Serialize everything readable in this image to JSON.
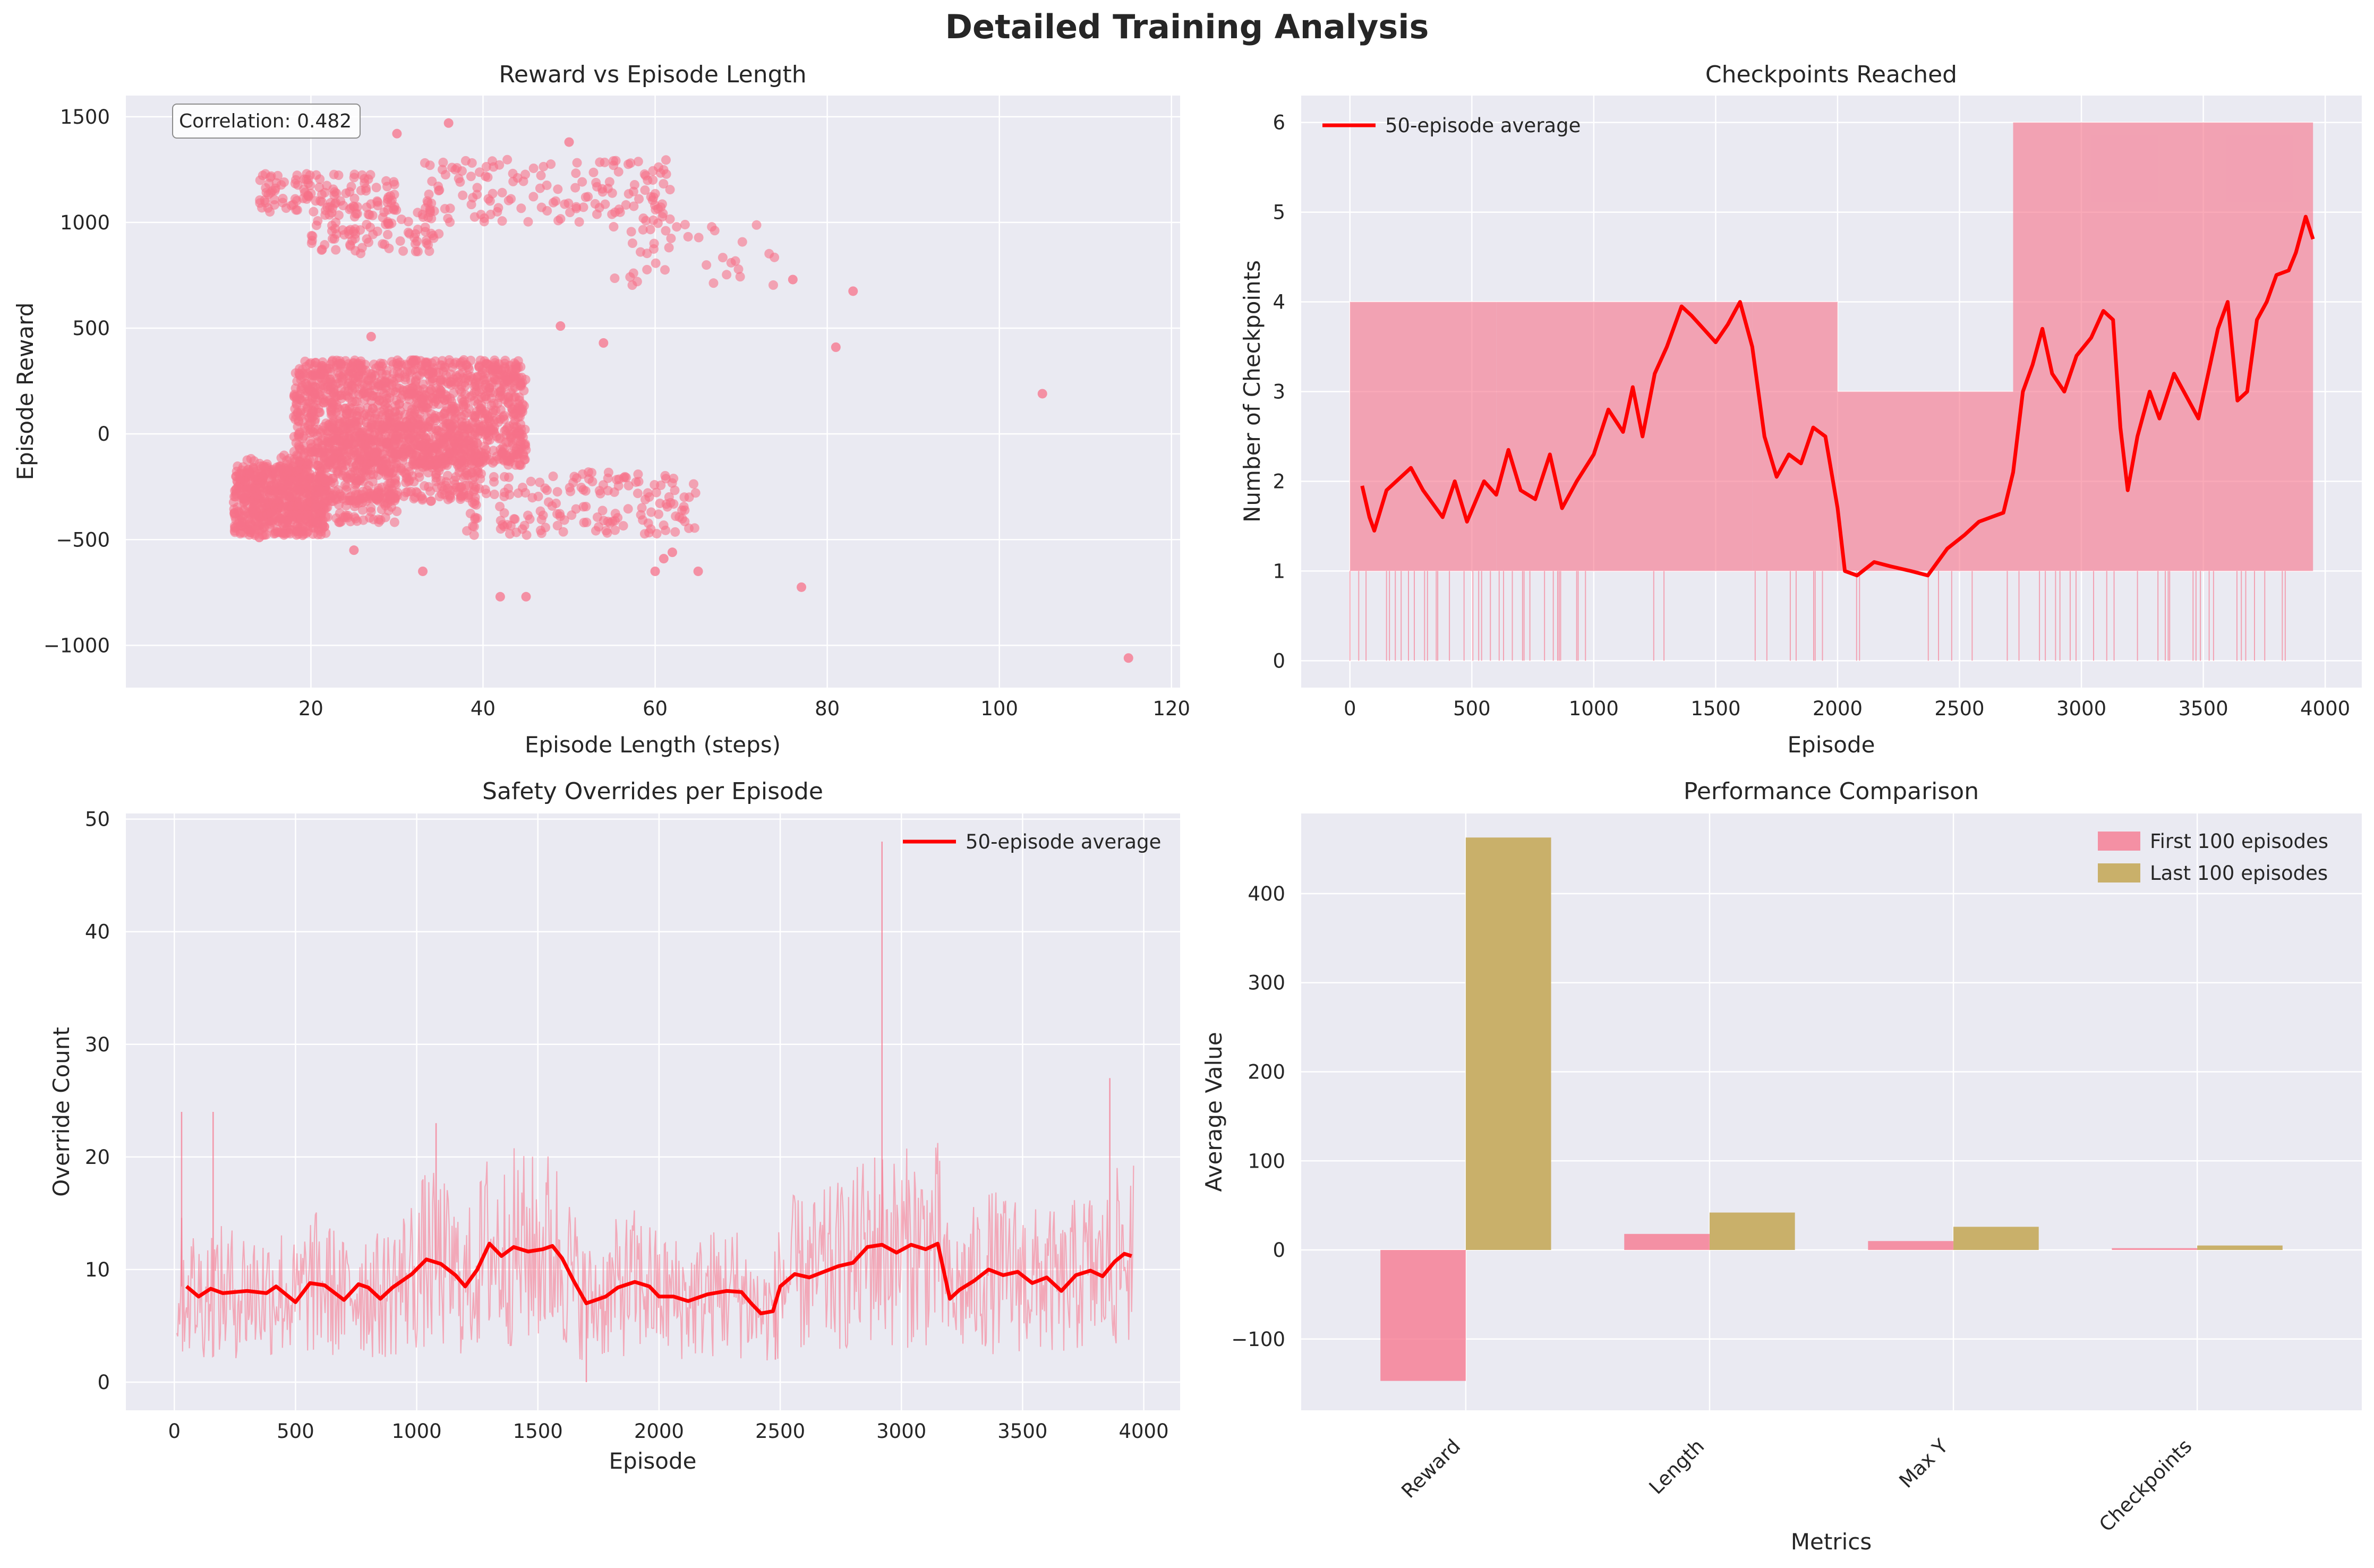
{
  "figure": {
    "suptitle": "Detailed Training Analysis"
  },
  "colors": {
    "panel_bg": "#eaeaf2",
    "grid": "#ffffff",
    "pink": "#f77189",
    "gold": "#c9b06a",
    "avg": "#ff0000",
    "text": "#262626"
  },
  "chart_data": [
    {
      "type": "scatter",
      "title": "Reward vs Episode Length",
      "xlabel": "Episode Length (steps)",
      "ylabel": "Episode Reward",
      "xlim": [
        -1.5,
        121
      ],
      "ylim": [
        -1200,
        1600
      ],
      "xticks": [
        20,
        40,
        60,
        80,
        100,
        120
      ],
      "yticks": [
        -1000,
        -500,
        0,
        500,
        1000,
        1500
      ],
      "annotation": "Correlation: 0.482",
      "grid": true,
      "clusters": [
        {
          "x": [
            11,
            22
          ],
          "y": [
            -480,
            -150
          ],
          "n": 520
        },
        {
          "x": [
            12,
            30
          ],
          "y": [
            -420,
            -100
          ],
          "n": 260
        },
        {
          "x": [
            18,
            45
          ],
          "y": [
            -150,
            350
          ],
          "n": 1300
        },
        {
          "x": [
            22,
            40
          ],
          "y": [
            -320,
            60
          ],
          "n": 420
        },
        {
          "x": [
            38,
            65
          ],
          "y": [
            -480,
            -180
          ],
          "n": 170
        },
        {
          "x": [
            14,
            30
          ],
          "y": [
            1050,
            1230
          ],
          "n": 120
        },
        {
          "x": [
            20,
            35
          ],
          "y": [
            850,
            1050
          ],
          "n": 90
        },
        {
          "x": [
            33,
            62
          ],
          "y": [
            1000,
            1300
          ],
          "n": 150
        },
        {
          "x": [
            55,
            75
          ],
          "y": [
            700,
            1000
          ],
          "n": 40
        }
      ],
      "outliers": [
        [
          115,
          -1060
        ],
        [
          105,
          190
        ],
        [
          77,
          -725
        ],
        [
          81,
          410
        ],
        [
          83,
          675
        ],
        [
          45,
          -770
        ],
        [
          42,
          -770
        ],
        [
          33,
          -650
        ],
        [
          60,
          -650
        ],
        [
          61,
          -590
        ],
        [
          49,
          510
        ],
        [
          54,
          430
        ],
        [
          27,
          460
        ],
        [
          36,
          1470
        ],
        [
          30,
          1420
        ],
        [
          50,
          1380
        ],
        [
          62,
          -560
        ],
        [
          76,
          730
        ],
        [
          65,
          -650
        ],
        [
          25,
          -550
        ],
        [
          14,
          -490
        ]
      ],
      "xtick_labels": [
        "20",
        "40",
        "60",
        "80",
        "100",
        "120"
      ],
      "ytick_labels": [
        "−1000",
        "−500",
        "0",
        "500",
        "1000",
        "1500"
      ]
    },
    {
      "type": "line",
      "title": "Checkpoints Reached",
      "xlabel": "Episode",
      "ylabel": "Number of Checkpoints",
      "xlim": [
        -200,
        4150
      ],
      "ylim": [
        -0.3,
        6.3
      ],
      "xticks": [
        0,
        500,
        1000,
        1500,
        2000,
        2500,
        3000,
        3500,
        4000
      ],
      "yticks": [
        0,
        1,
        2,
        3,
        4,
        5,
        6
      ],
      "legend": [
        "50-episode average"
      ],
      "legend_position": "top-left",
      "raw_level_bands": [
        {
          "x": [
            0,
            600
          ],
          "lo": 1,
          "hi": 4,
          "low_prob": 0.2
        },
        {
          "x": [
            600,
            1000
          ],
          "lo": 1,
          "hi": 4,
          "low_prob": 0.15
        },
        {
          "x": [
            1000,
            1650
          ],
          "lo": 1,
          "hi": 4,
          "low_prob": 0.03
        },
        {
          "x": [
            1650,
            2000
          ],
          "lo": 1,
          "hi": 4,
          "low_prob": 0.12
        },
        {
          "x": [
            2000,
            2720
          ],
          "lo": 1,
          "hi": 3,
          "low_prob": 0.04
        },
        {
          "x": [
            2720,
            3950
          ],
          "lo": 1,
          "hi": 6,
          "low_prob": 0.12
        }
      ],
      "avg_points": [
        [
          50,
          1.95
        ],
        [
          80,
          1.6
        ],
        [
          100,
          1.45
        ],
        [
          150,
          1.9
        ],
        [
          250,
          2.15
        ],
        [
          300,
          1.9
        ],
        [
          380,
          1.6
        ],
        [
          430,
          2.0
        ],
        [
          480,
          1.55
        ],
        [
          550,
          2.0
        ],
        [
          600,
          1.85
        ],
        [
          650,
          2.35
        ],
        [
          700,
          1.9
        ],
        [
          760,
          1.8
        ],
        [
          820,
          2.3
        ],
        [
          870,
          1.7
        ],
        [
          930,
          2.0
        ],
        [
          1000,
          2.3
        ],
        [
          1060,
          2.8
        ],
        [
          1120,
          2.55
        ],
        [
          1160,
          3.05
        ],
        [
          1200,
          2.5
        ],
        [
          1250,
          3.2
        ],
        [
          1300,
          3.5
        ],
        [
          1360,
          3.95
        ],
        [
          1400,
          3.85
        ],
        [
          1450,
          3.7
        ],
        [
          1500,
          3.55
        ],
        [
          1550,
          3.75
        ],
        [
          1600,
          4.0
        ],
        [
          1650,
          3.5
        ],
        [
          1700,
          2.5
        ],
        [
          1750,
          2.05
        ],
        [
          1800,
          2.3
        ],
        [
          1850,
          2.2
        ],
        [
          1900,
          2.6
        ],
        [
          1950,
          2.5
        ],
        [
          2000,
          1.7
        ],
        [
          2030,
          1.0
        ],
        [
          2080,
          0.95
        ],
        [
          2150,
          1.1
        ],
        [
          2220,
          1.05
        ],
        [
          2300,
          1.0
        ],
        [
          2370,
          0.95
        ],
        [
          2450,
          1.25
        ],
        [
          2520,
          1.4
        ],
        [
          2580,
          1.55
        ],
        [
          2630,
          1.6
        ],
        [
          2680,
          1.65
        ],
        [
          2720,
          2.1
        ],
        [
          2760,
          3.0
        ],
        [
          2800,
          3.3
        ],
        [
          2840,
          3.7
        ],
        [
          2880,
          3.2
        ],
        [
          2930,
          3.0
        ],
        [
          2980,
          3.4
        ],
        [
          3040,
          3.6
        ],
        [
          3090,
          3.9
        ],
        [
          3130,
          3.8
        ],
        [
          3160,
          2.6
        ],
        [
          3190,
          1.9
        ],
        [
          3230,
          2.5
        ],
        [
          3280,
          3.0
        ],
        [
          3320,
          2.7
        ],
        [
          3380,
          3.2
        ],
        [
          3430,
          2.95
        ],
        [
          3480,
          2.7
        ],
        [
          3520,
          3.2
        ],
        [
          3560,
          3.7
        ],
        [
          3600,
          4.0
        ],
        [
          3640,
          2.9
        ],
        [
          3680,
          3.0
        ],
        [
          3720,
          3.8
        ],
        [
          3760,
          4.0
        ],
        [
          3800,
          4.3
        ],
        [
          3850,
          4.35
        ],
        [
          3880,
          4.55
        ],
        [
          3920,
          4.95
        ],
        [
          3950,
          4.7
        ]
      ],
      "xtick_labels": [
        "0",
        "500",
        "1000",
        "1500",
        "2000",
        "2500",
        "3000",
        "3500",
        "4000"
      ],
      "ytick_labels": [
        "0",
        "1",
        "2",
        "3",
        "4",
        "5",
        "6"
      ]
    },
    {
      "type": "line",
      "title": "Safety Overrides per Episode",
      "xlabel": "Episode",
      "ylabel": "Override Count",
      "xlim": [
        -200,
        4150
      ],
      "ylim": [
        -2.5,
        50.5
      ],
      "xticks": [
        0,
        500,
        1000,
        1500,
        2000,
        2500,
        3000,
        3500,
        4000
      ],
      "yticks": [
        0,
        10,
        20,
        30,
        40,
        50
      ],
      "legend": [
        "50-episode average"
      ],
      "legend_position": "top-right",
      "spikes": [
        [
          2920,
          48
        ],
        [
          3860,
          27
        ],
        [
          1700,
          0
        ],
        [
          30,
          24
        ],
        [
          160,
          24
        ],
        [
          1080,
          23
        ],
        [
          2480,
          2
        ]
      ],
      "avg_points": [
        [
          50,
          8.5
        ],
        [
          100,
          7.6
        ],
        [
          150,
          8.3
        ],
        [
          200,
          7.9
        ],
        [
          300,
          8.1
        ],
        [
          380,
          7.9
        ],
        [
          420,
          8.5
        ],
        [
          500,
          7.1
        ],
        [
          560,
          8.8
        ],
        [
          620,
          8.6
        ],
        [
          700,
          7.3
        ],
        [
          760,
          8.7
        ],
        [
          800,
          8.4
        ],
        [
          850,
          7.4
        ],
        [
          900,
          8.4
        ],
        [
          980,
          9.6
        ],
        [
          1040,
          10.9
        ],
        [
          1100,
          10.5
        ],
        [
          1160,
          9.5
        ],
        [
          1200,
          8.5
        ],
        [
          1250,
          10.0
        ],
        [
          1300,
          12.3
        ],
        [
          1350,
          11.2
        ],
        [
          1400,
          12.0
        ],
        [
          1460,
          11.6
        ],
        [
          1520,
          11.8
        ],
        [
          1560,
          12.1
        ],
        [
          1600,
          11.0
        ],
        [
          1650,
          8.9
        ],
        [
          1700,
          7.0
        ],
        [
          1780,
          7.6
        ],
        [
          1830,
          8.4
        ],
        [
          1900,
          8.9
        ],
        [
          1960,
          8.5
        ],
        [
          2000,
          7.6
        ],
        [
          2060,
          7.6
        ],
        [
          2120,
          7.2
        ],
        [
          2200,
          7.8
        ],
        [
          2280,
          8.1
        ],
        [
          2340,
          8.0
        ],
        [
          2380,
          7.0
        ],
        [
          2420,
          6.1
        ],
        [
          2470,
          6.3
        ],
        [
          2500,
          8.5
        ],
        [
          2560,
          9.6
        ],
        [
          2620,
          9.3
        ],
        [
          2680,
          9.8
        ],
        [
          2740,
          10.3
        ],
        [
          2800,
          10.6
        ],
        [
          2860,
          12.0
        ],
        [
          2920,
          12.2
        ],
        [
          2980,
          11.5
        ],
        [
          3040,
          12.2
        ],
        [
          3100,
          11.8
        ],
        [
          3150,
          12.3
        ],
        [
          3200,
          7.4
        ],
        [
          3240,
          8.2
        ],
        [
          3300,
          9.0
        ],
        [
          3360,
          10.0
        ],
        [
          3420,
          9.5
        ],
        [
          3480,
          9.8
        ],
        [
          3540,
          8.8
        ],
        [
          3600,
          9.3
        ],
        [
          3660,
          8.1
        ],
        [
          3720,
          9.5
        ],
        [
          3780,
          9.9
        ],
        [
          3830,
          9.4
        ],
        [
          3880,
          10.7
        ],
        [
          3920,
          11.4
        ],
        [
          3950,
          11.2
        ]
      ],
      "xtick_labels": [
        "0",
        "500",
        "1000",
        "1500",
        "2000",
        "2500",
        "3000",
        "3500",
        "4000"
      ],
      "ytick_labels": [
        "0",
        "10",
        "20",
        "30",
        "40",
        "50"
      ]
    },
    {
      "type": "bar",
      "title": "Performance Comparison",
      "xlabel": "Metrics",
      "ylabel": "Average Value",
      "categories": [
        "Reward",
        "Length",
        "Max Y",
        "Checkpoints"
      ],
      "ylim": [
        -180,
        490
      ],
      "yticks": [
        -100,
        0,
        100,
        200,
        300,
        400
      ],
      "legend_position": "top-right",
      "series": [
        {
          "name": "First 100 episodes",
          "values": [
            -147,
            18,
            10,
            2
          ]
        },
        {
          "name": "Last 100 episodes",
          "values": [
            463,
            42,
            26,
            5
          ]
        }
      ],
      "ytick_labels": [
        "−100",
        "0",
        "100",
        "200",
        "300",
        "400"
      ]
    }
  ]
}
